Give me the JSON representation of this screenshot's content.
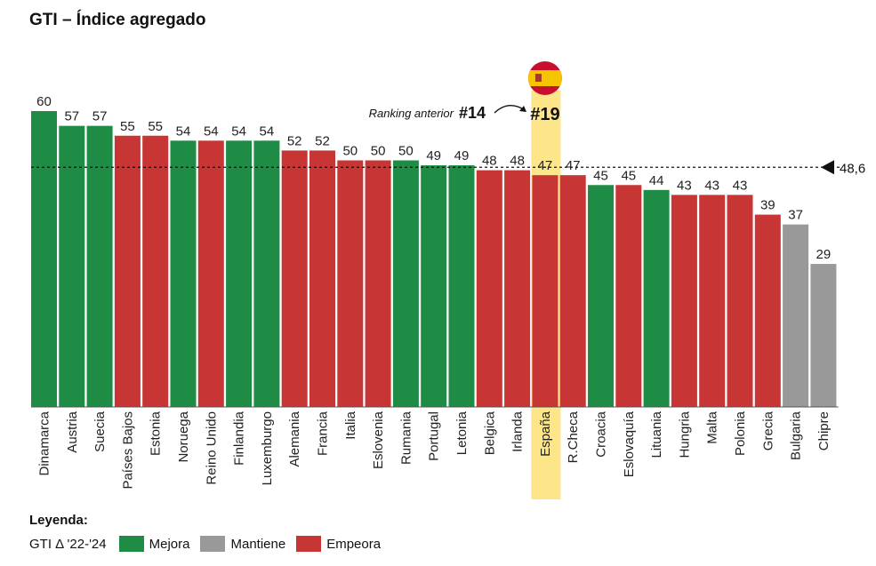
{
  "title": "GTI – Índice agregado",
  "chart_data": {
    "type": "bar",
    "title": "GTI – Índice agregado",
    "categories": [
      "Dinamarca",
      "Austria",
      "Suecia",
      "Países Bajos",
      "Estonia",
      "Noruega",
      "Reino Unido",
      "Finlandia",
      "Luxemburgo",
      "Alemania",
      "Francia",
      "Italia",
      "Eslovenia",
      "Rumania",
      "Portugal",
      "Letonia",
      "Belgica",
      "Irlanda",
      "España",
      "R.Checa",
      "Croacia",
      "Eslovaquía",
      "Lituania",
      "Hungria",
      "Malta",
      "Polonia",
      "Grecia",
      "Bulgaria",
      "Chipre"
    ],
    "values": [
      60,
      57,
      57,
      55,
      55,
      54,
      54,
      54,
      54,
      52,
      52,
      50,
      50,
      50,
      49,
      49,
      48,
      48,
      47,
      47,
      45,
      45,
      44,
      43,
      43,
      43,
      39,
      37,
      29
    ],
    "status": [
      "mejora",
      "mejora",
      "mejora",
      "empeora",
      "empeora",
      "mejora",
      "empeora",
      "mejora",
      "mejora",
      "empeora",
      "empeora",
      "empeora",
      "empeora",
      "mejora",
      "mejora",
      "mejora",
      "empeora",
      "empeora",
      "empeora",
      "empeora",
      "mejora",
      "empeora",
      "mejora",
      "empeora",
      "empeora",
      "empeora",
      "empeora",
      "mantiene",
      "mantiene"
    ],
    "ylim": [
      0,
      66
    ],
    "average": {
      "value": 48.6,
      "label": "48,6"
    },
    "highlight": {
      "category": "España",
      "rank_label": "#19",
      "previous_label": "Ranking anterior",
      "previous_rank": "#14"
    },
    "legend_placement": "bottom-left"
  },
  "legend": {
    "title": "Leyenda:",
    "prefix": "GTI Δ '22-'24",
    "items": [
      {
        "key": "mejora",
        "label": "Mejora",
        "color": "#1e8c45"
      },
      {
        "key": "mantiene",
        "label": "Mantiene",
        "color": "#999999"
      },
      {
        "key": "empeora",
        "label": "Empeora",
        "color": "#c73534"
      }
    ]
  },
  "colors": {
    "mejora": "#1e8c45",
    "mantiene": "#999999",
    "empeora": "#c73534",
    "highlight": "#fde58a"
  }
}
